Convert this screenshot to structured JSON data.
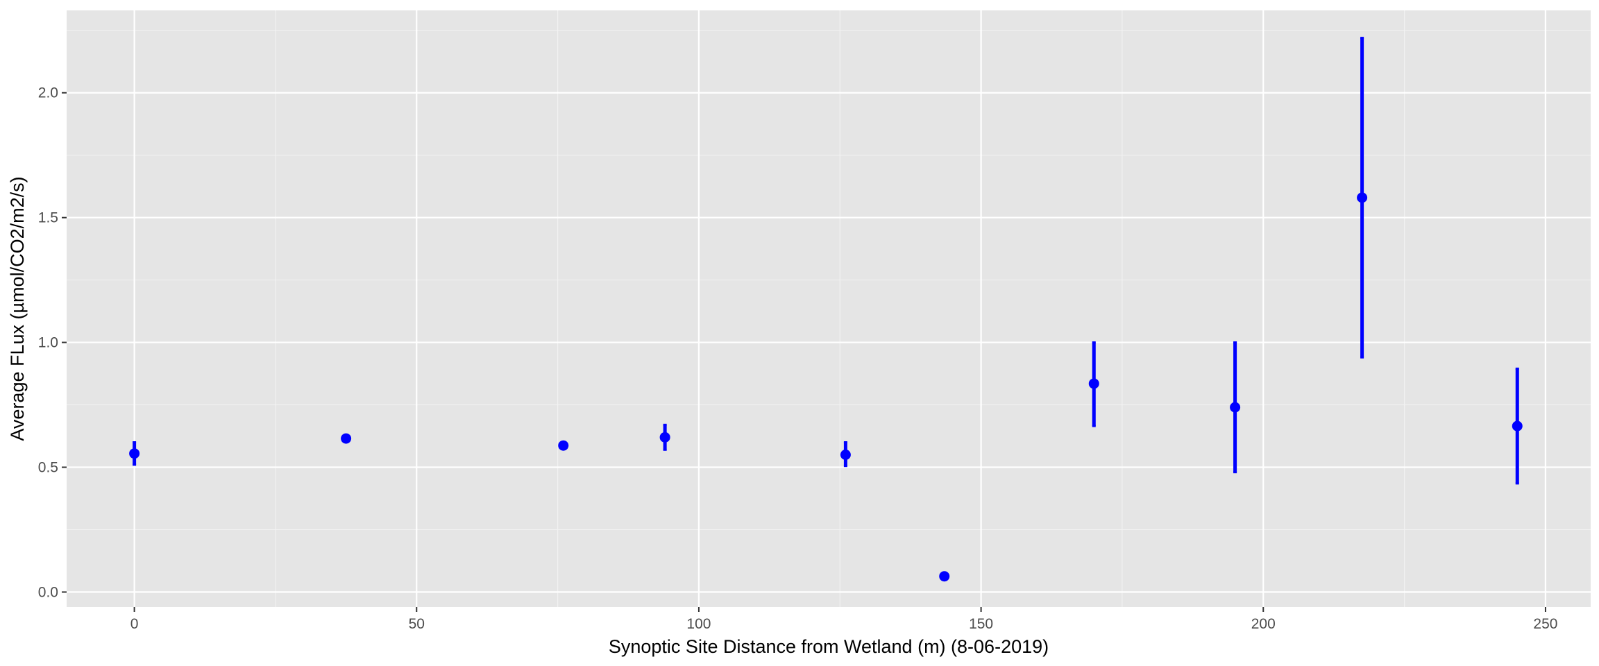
{
  "chart_data": {
    "type": "scatter",
    "title": "",
    "xlabel": "Synoptic Site Distance from Wetland (m) (8-06-2019)",
    "ylabel": "Average FLux (µmol/CO2/m2/s)",
    "xlim": [
      -12,
      258
    ],
    "ylim": [
      -0.06,
      2.33
    ],
    "x_ticks": [
      0,
      50,
      100,
      150,
      200,
      250
    ],
    "y_ticks": [
      0.0,
      0.5,
      1.0,
      1.5,
      2.0
    ],
    "grid": true,
    "legend": "none",
    "point_color": "#0000ff",
    "errorbar_color": "#0000ff",
    "panel_background": "#e5e5e5",
    "series": [
      {
        "points": [
          {
            "x": 0,
            "y": 0.555,
            "ymin": 0.51,
            "ymax": 0.6
          },
          {
            "x": 37.5,
            "y": 0.615
          },
          {
            "x": 76,
            "y": 0.587
          },
          {
            "x": 94,
            "y": 0.62,
            "ymin": 0.57,
            "ymax": 0.67
          },
          {
            "x": 126,
            "y": 0.55,
            "ymin": 0.505,
            "ymax": 0.6
          },
          {
            "x": 143.5,
            "y": 0.063
          },
          {
            "x": 170,
            "y": 0.835,
            "ymin": 0.665,
            "ymax": 1.0
          },
          {
            "x": 195,
            "y": 0.74,
            "ymin": 0.48,
            "ymax": 1.0
          },
          {
            "x": 217.5,
            "y": 1.58,
            "ymin": 0.94,
            "ymax": 2.22
          },
          {
            "x": 245,
            "y": 0.665,
            "ymin": 0.435,
            "ymax": 0.895
          }
        ]
      }
    ]
  }
}
